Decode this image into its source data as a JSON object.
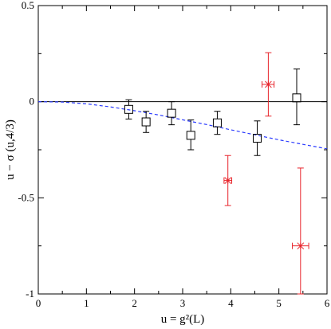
{
  "chart_data": {
    "type": "scatter",
    "xlabel": "u = g²(L)",
    "ylabel": "u − σ (u,4/3)",
    "xlim": [
      0,
      6
    ],
    "ylim": [
      -1,
      0.5
    ],
    "x_ticks": [
      "0",
      "1",
      "2",
      "3",
      "4",
      "5",
      "6"
    ],
    "y_ticks": [
      "-1",
      "-0.5",
      "0",
      "0.5"
    ],
    "reference_line_y": 0,
    "series": [
      {
        "marker": "square",
        "color": "#000000",
        "points": [
          {
            "x": 1.88,
            "y": -0.04,
            "yerr_lo": -0.09,
            "yerr_hi": 0.01
          },
          {
            "x": 2.24,
            "y": -0.105,
            "yerr_lo": -0.16,
            "yerr_hi": -0.05
          },
          {
            "x": 2.77,
            "y": -0.06,
            "yerr_lo": -0.12,
            "yerr_hi": 0.0
          },
          {
            "x": 3.17,
            "y": -0.175,
            "yerr_lo": -0.25,
            "yerr_hi": -0.095
          },
          {
            "x": 3.72,
            "y": -0.11,
            "yerr_lo": -0.17,
            "yerr_hi": -0.05
          },
          {
            "x": 4.55,
            "y": -0.19,
            "yerr_lo": -0.28,
            "yerr_hi": -0.1
          },
          {
            "x": 5.37,
            "y": 0.02,
            "yerr_lo": -0.12,
            "yerr_hi": 0.17
          }
        ]
      },
      {
        "marker": "asterisk",
        "color": "#e8232a",
        "points": [
          {
            "x": 3.94,
            "y": -0.41,
            "yerr_lo": -0.54,
            "yerr_hi": -0.28,
            "xerr_lo": 3.86,
            "xerr_hi": 4.02
          },
          {
            "x": 4.78,
            "y": 0.09,
            "yerr_lo": -0.075,
            "yerr_hi": 0.255,
            "xerr_lo": 4.65,
            "xerr_hi": 4.9
          },
          {
            "x": 5.45,
            "y": -0.75,
            "yerr_lo": -1.0,
            "yerr_hi": -0.345,
            "xerr_lo": 5.28,
            "xerr_hi": 5.62
          }
        ]
      },
      {
        "type": "line",
        "style": "dashed",
        "color": "#2b3bff",
        "x": [
          0,
          0.5,
          1,
          1.5,
          2,
          2.5,
          3,
          3.5,
          4,
          4.5,
          5,
          5.5,
          6
        ],
        "y": [
          0,
          -0.002,
          -0.011,
          -0.027,
          -0.047,
          -0.069,
          -0.094,
          -0.119,
          -0.146,
          -0.172,
          -0.198,
          -0.222,
          -0.245
        ]
      }
    ]
  }
}
